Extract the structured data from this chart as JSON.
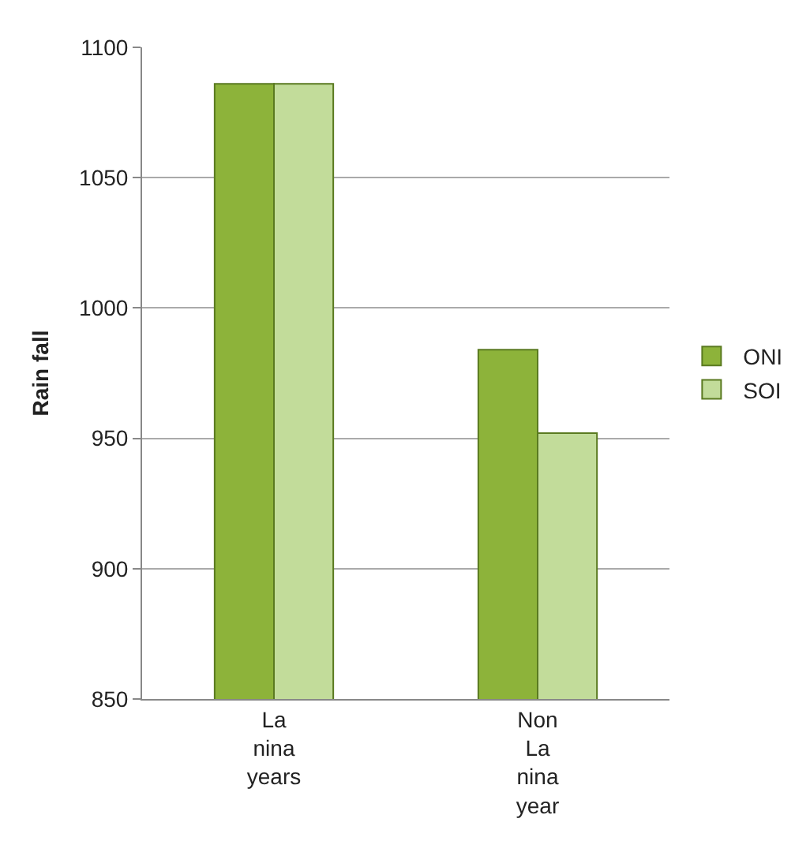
{
  "chart_data": {
    "type": "bar",
    "ylabel": "Rain fall",
    "categories": [
      "La nina years",
      "Non La nina year"
    ],
    "series": [
      {
        "name": "ONI",
        "color": "#8db33a",
        "values": [
          1086,
          984
        ]
      },
      {
        "name": "SOI",
        "color": "#c2dc9a",
        "values": [
          1086,
          952
        ]
      }
    ],
    "ylim": [
      850,
      1100
    ],
    "yticks": [
      850,
      900,
      950,
      1000,
      1050,
      1100
    ],
    "grid": "y",
    "legend": "right"
  }
}
